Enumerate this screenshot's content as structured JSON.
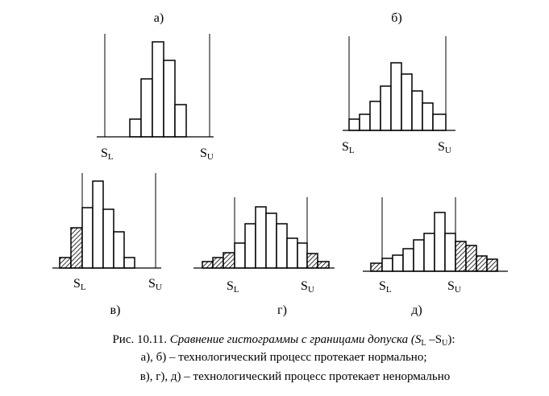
{
  "panels": [
    {
      "label": "а)",
      "lower": [
        "S",
        "L"
      ],
      "upper": [
        "S",
        "U"
      ]
    },
    {
      "label": "б)",
      "lower": [
        "S",
        "L"
      ],
      "upper": [
        "S",
        "U"
      ]
    },
    {
      "label": "в)",
      "lower": [
        "S",
        "L"
      ],
      "upper": [
        "S",
        "U"
      ]
    },
    {
      "label": "г)",
      "lower": [
        "S",
        "L"
      ],
      "upper": [
        "S",
        "U"
      ]
    },
    {
      "label": "д)",
      "lower": [
        "S",
        "L"
      ],
      "upper": [
        "S",
        "U"
      ]
    }
  ],
  "caption": {
    "line1": [
      "Рис. 10.11. ",
      "Сравнение гистограммы с границами допуска (S",
      "L",
      " –S",
      "U",
      "):"
    ],
    "line2": "а), б) – технологический процесс протекает нормально;",
    "line3": "в), г), д) – технологический процесс протекает ненормально"
  }
}
